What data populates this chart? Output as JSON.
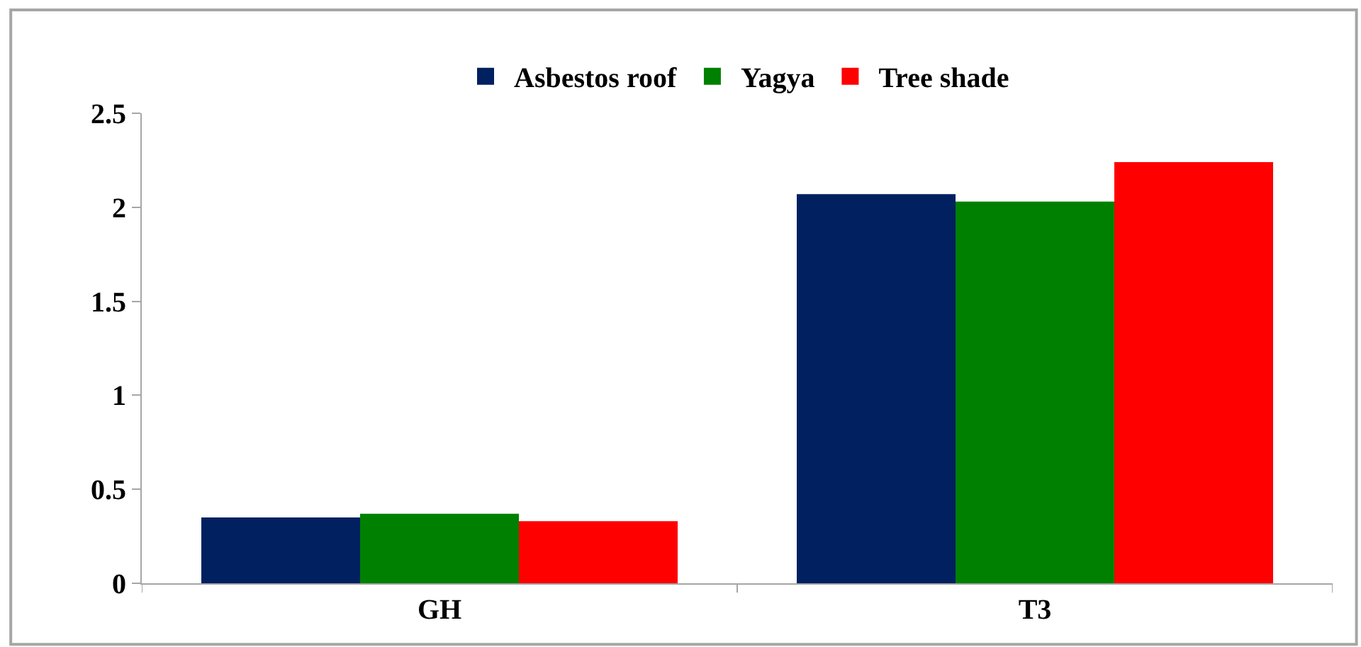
{
  "chart_data": {
    "type": "bar",
    "categories": [
      "GH",
      "T3"
    ],
    "series": [
      {
        "name": "Asbestos roof",
        "color": "#002060",
        "values": [
          0.35,
          2.07
        ]
      },
      {
        "name": "Yagya",
        "color": "#008000",
        "values": [
          0.37,
          2.03
        ]
      },
      {
        "name": "Tree shade",
        "color": "#ff0000",
        "values": [
          0.33,
          2.24
        ]
      }
    ],
    "ylim": [
      0,
      2.5
    ],
    "yticks": [
      0,
      {
        "value": 0.5,
        "label": "0.5"
      },
      1,
      {
        "value": 1.5,
        "label": "1.5"
      },
      2,
      {
        "value": 2.5,
        "label": "2.5"
      }
    ],
    "legend": "top"
  }
}
